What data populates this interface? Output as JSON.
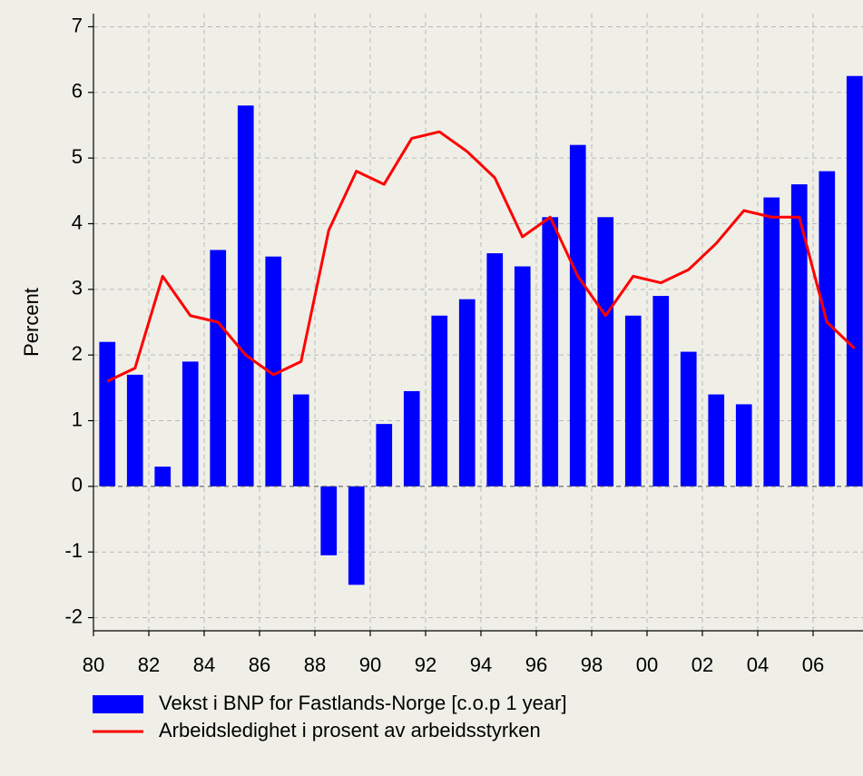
{
  "chart_data": {
    "type": "bar_line",
    "ylabel": "Percent",
    "x": [
      1980,
      1981,
      1982,
      1983,
      1984,
      1985,
      1986,
      1987,
      1988,
      1989,
      1990,
      1991,
      1992,
      1993,
      1994,
      1995,
      1996,
      1997,
      1998,
      1999,
      2000,
      2001,
      2002,
      2003,
      2004,
      2005,
      2006,
      2007
    ],
    "series": [
      {
        "name": "Vekst i BNP for Fastlands-Norge [c.o.p 1 year]",
        "type": "bar",
        "color": "#0000ff",
        "values": [
          2.2,
          1.7,
          0.3,
          1.9,
          3.6,
          5.8,
          3.5,
          1.4,
          -1.05,
          -1.5,
          0.95,
          1.45,
          2.6,
          2.85,
          3.55,
          3.35,
          4.1,
          5.2,
          4.1,
          2.6,
          2.9,
          2.05,
          1.4,
          1.25,
          4.4,
          4.6,
          4.8,
          6.25
        ]
      },
      {
        "name": "Arbeidsledighet i prosent av arbeidsstyrken",
        "type": "line",
        "color": "#ff0000",
        "values": [
          1.6,
          1.8,
          3.2,
          2.6,
          2.5,
          2.0,
          1.7,
          1.9,
          3.9,
          4.8,
          4.6,
          5.3,
          5.4,
          5.1,
          4.7,
          3.8,
          4.1,
          3.2,
          2.6,
          3.2,
          3.1,
          3.3,
          3.7,
          4.2,
          4.1,
          4.1,
          2.5,
          2.1
        ]
      }
    ],
    "xlim": [
      1980,
      2008
    ],
    "xticks": [
      {
        "value": 1980,
        "label": "80"
      },
      {
        "value": 1982,
        "label": "82"
      },
      {
        "value": 1984,
        "label": "84"
      },
      {
        "value": 1986,
        "label": "86"
      },
      {
        "value": 1988,
        "label": "88"
      },
      {
        "value": 1990,
        "label": "90"
      },
      {
        "value": 1992,
        "label": "92"
      },
      {
        "value": 1994,
        "label": "94"
      },
      {
        "value": 1996,
        "label": "96"
      },
      {
        "value": 1998,
        "label": "98"
      },
      {
        "value": 2000,
        "label": "00"
      },
      {
        "value": 2002,
        "label": "02"
      },
      {
        "value": 2004,
        "label": "04"
      },
      {
        "value": 2006,
        "label": "06"
      }
    ],
    "ylim": [
      -2.2,
      7.2
    ],
    "yticks": [
      -2,
      -1,
      0,
      1,
      2,
      3,
      4,
      5,
      6,
      7
    ],
    "grid": true,
    "legend": "bottom"
  }
}
